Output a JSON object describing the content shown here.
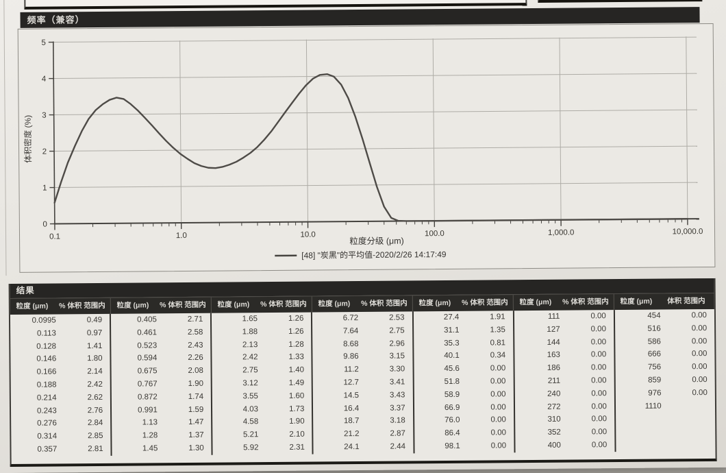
{
  "chart": {
    "title": "频率（兼容）",
    "ylabel": "体积密度 (%)",
    "xlabel": "粒度分级 (μm)",
    "legend_label": "[48] \"炭黑\"的平均值-2020/2/26 14:17:49",
    "y_ticks": [
      0,
      1,
      2,
      3,
      4,
      5
    ],
    "x_ticks": [
      {
        "label": "0.1",
        "value": 0.1
      },
      {
        "label": "1.0",
        "value": 1.0
      },
      {
        "label": "10.0",
        "value": 10.0
      },
      {
        "label": "100.0",
        "value": 100.0
      },
      {
        "label": "1,000.0",
        "value": 1000.0
      },
      {
        "label": "10,000.0",
        "value": 10000.0
      }
    ]
  },
  "chart_data": {
    "type": "line",
    "x_scale": "log",
    "xlim": [
      0.1,
      10000
    ],
    "ylim": [
      0,
      5
    ],
    "title": "频率（兼容）",
    "xlabel": "粒度分级 (μm)",
    "ylabel": "体积密度 (%)",
    "grid": true,
    "legend_position": "bottom",
    "series": [
      {
        "name": "[48] \"炭黑\"的平均值-2020/2/26 14:17:49",
        "points": [
          [
            0.1,
            0.58
          ],
          [
            0.113,
            1.15
          ],
          [
            0.128,
            1.68
          ],
          [
            0.146,
            2.14
          ],
          [
            0.166,
            2.55
          ],
          [
            0.188,
            2.88
          ],
          [
            0.214,
            3.12
          ],
          [
            0.243,
            3.28
          ],
          [
            0.276,
            3.4
          ],
          [
            0.314,
            3.46
          ],
          [
            0.357,
            3.42
          ],
          [
            0.405,
            3.28
          ],
          [
            0.461,
            3.1
          ],
          [
            0.523,
            2.9
          ],
          [
            0.594,
            2.69
          ],
          [
            0.675,
            2.47
          ],
          [
            0.767,
            2.26
          ],
          [
            0.872,
            2.07
          ],
          [
            0.991,
            1.9
          ],
          [
            1.13,
            1.76
          ],
          [
            1.28,
            1.64
          ],
          [
            1.45,
            1.56
          ],
          [
            1.65,
            1.51
          ],
          [
            1.88,
            1.5
          ],
          [
            2.13,
            1.53
          ],
          [
            2.42,
            1.59
          ],
          [
            2.75,
            1.67
          ],
          [
            3.12,
            1.78
          ],
          [
            3.55,
            1.91
          ],
          [
            4.03,
            2.07
          ],
          [
            4.58,
            2.27
          ],
          [
            5.21,
            2.5
          ],
          [
            5.92,
            2.76
          ],
          [
            6.72,
            3.02
          ],
          [
            7.64,
            3.28
          ],
          [
            8.68,
            3.53
          ],
          [
            9.86,
            3.76
          ],
          [
            11.2,
            3.94
          ],
          [
            12.7,
            4.04
          ],
          [
            14.5,
            4.06
          ],
          [
            16.4,
            3.99
          ],
          [
            18.7,
            3.77
          ],
          [
            21.2,
            3.4
          ],
          [
            24.1,
            2.88
          ],
          [
            27.4,
            2.26
          ],
          [
            31.1,
            1.6
          ],
          [
            35.3,
            0.95
          ],
          [
            40.1,
            0.4
          ],
          [
            45.6,
            0.09
          ],
          [
            51.8,
            0.01
          ],
          [
            60,
            0
          ],
          [
            80,
            0
          ],
          [
            100,
            0
          ],
          [
            1000,
            0
          ],
          [
            10000,
            0
          ]
        ]
      }
    ]
  },
  "results": {
    "title": "结果",
    "headers": {
      "size": "粒度 (μm)",
      "pct": "% 体积 范围内",
      "pct_last": "体积 范围内"
    },
    "sections": [
      [
        [
          "0.0995",
          "0.49"
        ],
        [
          "0.113",
          "0.97"
        ],
        [
          "0.128",
          "1.41"
        ],
        [
          "0.146",
          "1.80"
        ],
        [
          "0.166",
          "2.14"
        ],
        [
          "0.188",
          "2.42"
        ],
        [
          "0.214",
          "2.62"
        ],
        [
          "0.243",
          "2.76"
        ],
        [
          "0.276",
          "2.84"
        ],
        [
          "0.314",
          "2.85"
        ],
        [
          "0.357",
          "2.81"
        ]
      ],
      [
        [
          "0.405",
          "2.71"
        ],
        [
          "0.461",
          "2.58"
        ],
        [
          "0.523",
          "2.43"
        ],
        [
          "0.594",
          "2.26"
        ],
        [
          "0.675",
          "2.08"
        ],
        [
          "0.767",
          "1.90"
        ],
        [
          "0.872",
          "1.74"
        ],
        [
          "0.991",
          "1.59"
        ],
        [
          "1.13",
          "1.47"
        ],
        [
          "1.28",
          "1.37"
        ],
        [
          "1.45",
          "1.30"
        ]
      ],
      [
        [
          "1.65",
          "1.26"
        ],
        [
          "1.88",
          "1.26"
        ],
        [
          "2.13",
          "1.28"
        ],
        [
          "2.42",
          "1.33"
        ],
        [
          "2.75",
          "1.40"
        ],
        [
          "3.12",
          "1.49"
        ],
        [
          "3.55",
          "1.60"
        ],
        [
          "4.03",
          "1.73"
        ],
        [
          "4.58",
          "1.90"
        ],
        [
          "5.21",
          "2.10"
        ],
        [
          "5.92",
          "2.31"
        ]
      ],
      [
        [
          "6.72",
          "2.53"
        ],
        [
          "7.64",
          "2.75"
        ],
        [
          "8.68",
          "2.96"
        ],
        [
          "9.86",
          "3.15"
        ],
        [
          "11.2",
          "3.30"
        ],
        [
          "12.7",
          "3.41"
        ],
        [
          "14.5",
          "3.43"
        ],
        [
          "16.4",
          "3.37"
        ],
        [
          "18.7",
          "3.18"
        ],
        [
          "21.2",
          "2.87"
        ],
        [
          "24.1",
          "2.44"
        ]
      ],
      [
        [
          "27.4",
          "1.91"
        ],
        [
          "31.1",
          "1.35"
        ],
        [
          "35.3",
          "0.81"
        ],
        [
          "40.1",
          "0.34"
        ],
        [
          "45.6",
          "0.00"
        ],
        [
          "51.8",
          "0.00"
        ],
        [
          "58.9",
          "0.00"
        ],
        [
          "66.9",
          "0.00"
        ],
        [
          "76.0",
          "0.00"
        ],
        [
          "86.4",
          "0.00"
        ],
        [
          "98.1",
          "0.00"
        ]
      ],
      [
        [
          "111",
          "0.00"
        ],
        [
          "127",
          "0.00"
        ],
        [
          "144",
          "0.00"
        ],
        [
          "163",
          "0.00"
        ],
        [
          "186",
          "0.00"
        ],
        [
          "211",
          "0.00"
        ],
        [
          "240",
          "0.00"
        ],
        [
          "272",
          "0.00"
        ],
        [
          "310",
          "0.00"
        ],
        [
          "352",
          "0.00"
        ],
        [
          "400",
          "0.00"
        ]
      ],
      [
        [
          "454",
          "0.00"
        ],
        [
          "516",
          "0.00"
        ],
        [
          "586",
          "0.00"
        ],
        [
          "666",
          "0.00"
        ],
        [
          "756",
          "0.00"
        ],
        [
          "859",
          "0.00"
        ],
        [
          "976",
          "0.00"
        ],
        [
          "1110",
          ""
        ],
        [
          "",
          ""
        ],
        [
          "",
          ""
        ],
        [
          "",
          ""
        ]
      ]
    ]
  },
  "colors": {
    "dark_bar": "#262523",
    "paper": "#e7e5e0",
    "curve": "#4e4b47",
    "grid": "#aeaca6",
    "axis": "#45433f"
  }
}
